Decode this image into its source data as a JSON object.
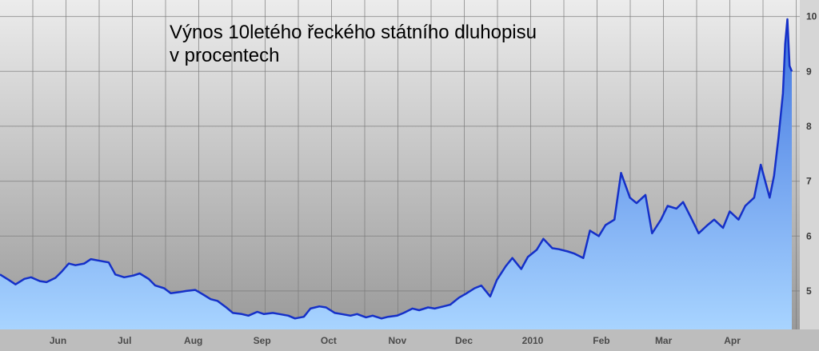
{
  "chart_data": {
    "type": "area",
    "title": "Výnos 10letého řeckého státního dluhopisu",
    "subtitle": "v procentech",
    "xlabel": "",
    "ylabel": "",
    "x_ticks": [
      "Jun",
      "Jul",
      "Aug",
      "Sep",
      "Oct",
      "Nov",
      "Dec",
      "2010",
      "Feb",
      "Mar",
      "Apr"
    ],
    "y_ticks": [
      "5",
      "6",
      "7",
      "8",
      "9",
      "10"
    ],
    "x_range": [
      "2009-05-08",
      "2010-04-30"
    ],
    "ylim": [
      4.3,
      10.3
    ],
    "grid": true,
    "legend": "none",
    "colors": {
      "line": "#1530c8",
      "fill_top": "#3f74e0",
      "fill_bottom": "#a8d4ff",
      "background_top": "#eaeaea",
      "background_bottom": "#9c9c9c",
      "grid": "#777777"
    },
    "series": [
      {
        "name": "",
        "points": [
          [
            "2009-05-08",
            5.3
          ],
          [
            "2009-05-12",
            5.2
          ],
          [
            "2009-05-15",
            5.12
          ],
          [
            "2009-05-19",
            5.22
          ],
          [
            "2009-05-22",
            5.25
          ],
          [
            "2009-05-26",
            5.18
          ],
          [
            "2009-05-29",
            5.16
          ],
          [
            "2009-06-02",
            5.24
          ],
          [
            "2009-06-05",
            5.36
          ],
          [
            "2009-06-08",
            5.5
          ],
          [
            "2009-06-11",
            5.47
          ],
          [
            "2009-06-15",
            5.5
          ],
          [
            "2009-06-18",
            5.58
          ],
          [
            "2009-06-22",
            5.55
          ],
          [
            "2009-06-26",
            5.52
          ],
          [
            "2009-06-29",
            5.3
          ],
          [
            "2009-07-03",
            5.25
          ],
          [
            "2009-07-07",
            5.28
          ],
          [
            "2009-07-10",
            5.32
          ],
          [
            "2009-07-14",
            5.22
          ],
          [
            "2009-07-17",
            5.1
          ],
          [
            "2009-07-21",
            5.05
          ],
          [
            "2009-07-24",
            4.96
          ],
          [
            "2009-07-28",
            4.98
          ],
          [
            "2009-07-31",
            5.0
          ],
          [
            "2009-08-04",
            5.02
          ],
          [
            "2009-08-07",
            4.95
          ],
          [
            "2009-08-11",
            4.85
          ],
          [
            "2009-08-14",
            4.82
          ],
          [
            "2009-08-18",
            4.7
          ],
          [
            "2009-08-21",
            4.6
          ],
          [
            "2009-08-25",
            4.58
          ],
          [
            "2009-08-28",
            4.55
          ],
          [
            "2009-09-01",
            4.62
          ],
          [
            "2009-09-04",
            4.58
          ],
          [
            "2009-09-08",
            4.6
          ],
          [
            "2009-09-11",
            4.58
          ],
          [
            "2009-09-15",
            4.55
          ],
          [
            "2009-09-18",
            4.5
          ],
          [
            "2009-09-22",
            4.53
          ],
          [
            "2009-09-25",
            4.68
          ],
          [
            "2009-09-29",
            4.72
          ],
          [
            "2009-10-02",
            4.7
          ],
          [
            "2009-10-06",
            4.6
          ],
          [
            "2009-10-09",
            4.58
          ],
          [
            "2009-10-13",
            4.55
          ],
          [
            "2009-10-16",
            4.58
          ],
          [
            "2009-10-20",
            4.52
          ],
          [
            "2009-10-23",
            4.55
          ],
          [
            "2009-10-27",
            4.5
          ],
          [
            "2009-10-30",
            4.53
          ],
          [
            "2009-11-03",
            4.55
          ],
          [
            "2009-11-06",
            4.6
          ],
          [
            "2009-11-10",
            4.68
          ],
          [
            "2009-11-13",
            4.65
          ],
          [
            "2009-11-17",
            4.7
          ],
          [
            "2009-11-20",
            4.68
          ],
          [
            "2009-11-24",
            4.72
          ],
          [
            "2009-11-27",
            4.75
          ],
          [
            "2009-12-01",
            4.88
          ],
          [
            "2009-12-04",
            4.95
          ],
          [
            "2009-12-08",
            5.05
          ],
          [
            "2009-12-11",
            5.1
          ],
          [
            "2009-12-15",
            4.9
          ],
          [
            "2009-12-18",
            5.2
          ],
          [
            "2009-12-22",
            5.45
          ],
          [
            "2009-12-25",
            5.6
          ],
          [
            "2009-12-29",
            5.4
          ],
          [
            "2010-01-01",
            5.62
          ],
          [
            "2010-01-05",
            5.75
          ],
          [
            "2010-01-08",
            5.95
          ],
          [
            "2010-01-12",
            5.78
          ],
          [
            "2010-01-15",
            5.76
          ],
          [
            "2010-01-19",
            5.72
          ],
          [
            "2010-01-22",
            5.68
          ],
          [
            "2010-01-26",
            5.6
          ],
          [
            "2010-01-29",
            6.1
          ],
          [
            "2010-02-02",
            6.0
          ],
          [
            "2010-02-05",
            6.2
          ],
          [
            "2010-02-09",
            6.3
          ],
          [
            "2010-02-12",
            7.15
          ],
          [
            "2010-02-16",
            6.7
          ],
          [
            "2010-02-19",
            6.6
          ],
          [
            "2010-02-23",
            6.75
          ],
          [
            "2010-02-26",
            6.05
          ],
          [
            "2010-03-02",
            6.3
          ],
          [
            "2010-03-05",
            6.55
          ],
          [
            "2010-03-09",
            6.5
          ],
          [
            "2010-03-12",
            6.62
          ],
          [
            "2010-03-16",
            6.3
          ],
          [
            "2010-03-19",
            6.05
          ],
          [
            "2010-03-23",
            6.2
          ],
          [
            "2010-03-26",
            6.3
          ],
          [
            "2010-03-30",
            6.15
          ],
          [
            "2010-04-02",
            6.45
          ],
          [
            "2010-04-06",
            6.3
          ],
          [
            "2010-04-09",
            6.55
          ],
          [
            "2010-04-13",
            6.7
          ],
          [
            "2010-04-16",
            7.3
          ],
          [
            "2010-04-20",
            6.7
          ],
          [
            "2010-04-22",
            7.1
          ],
          [
            "2010-04-24",
            7.8
          ],
          [
            "2010-04-26",
            8.6
          ],
          [
            "2010-04-27",
            9.5
          ],
          [
            "2010-04-28",
            9.95
          ],
          [
            "2010-04-29",
            9.1
          ],
          [
            "2010-04-30",
            9.0
          ]
        ]
      }
    ]
  }
}
